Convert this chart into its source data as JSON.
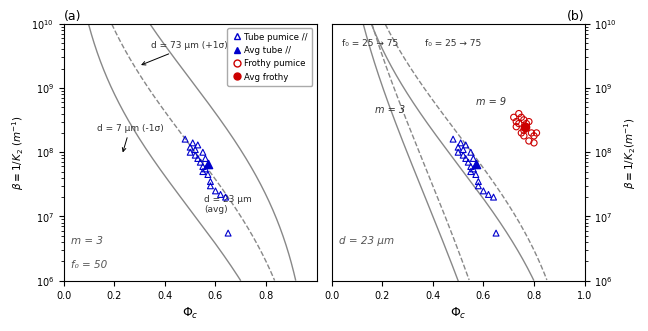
{
  "panel_a_label": "(a)",
  "panel_b_label": "(b)",
  "curves_a": [
    {
      "d_um": 7,
      "m": 3,
      "f0": 50,
      "style": "solid",
      "color": "#888888"
    },
    {
      "d_um": 23,
      "m": 3,
      "f0": 50,
      "style": "dashed",
      "color": "#888888"
    },
    {
      "d_um": 73,
      "m": 3,
      "f0": 50,
      "style": "solid",
      "color": "#888888"
    }
  ],
  "curves_b": [
    {
      "d_um": 23,
      "m": 3,
      "f0": 25,
      "style": "solid",
      "color": "#888888"
    },
    {
      "d_um": 23,
      "m": 3,
      "f0": 75,
      "style": "dashed",
      "color": "#888888"
    },
    {
      "d_um": 23,
      "m": 9,
      "f0": 25,
      "style": "solid",
      "color": "#888888"
    },
    {
      "d_um": 23,
      "m": 9,
      "f0": 75,
      "style": "dashed",
      "color": "#888888"
    }
  ],
  "tube_pumice_phi": [
    0.48,
    0.5,
    0.5,
    0.51,
    0.52,
    0.52,
    0.53,
    0.53,
    0.54,
    0.55,
    0.55,
    0.55,
    0.56,
    0.56,
    0.57,
    0.58,
    0.58,
    0.6,
    0.62,
    0.64,
    0.65
  ],
  "tube_pumice_beta": [
    160000000.0,
    120000000.0,
    100000000.0,
    140000000.0,
    110000000.0,
    90000000.0,
    130000000.0,
    80000000.0,
    70000000.0,
    100000000.0,
    60000000.0,
    50000000.0,
    80000000.0,
    55000000.0,
    45000000.0,
    35000000.0,
    30000000.0,
    25000000.0,
    22000000.0,
    20000000.0,
    5500000.0
  ],
  "avg_tube_phi": [
    0.57
  ],
  "avg_tube_beta": [
    65000000.0
  ],
  "frothy_phi": [
    0.72,
    0.73,
    0.73,
    0.74,
    0.74,
    0.75,
    0.75,
    0.76,
    0.76,
    0.76,
    0.77,
    0.77,
    0.78,
    0.78,
    0.79,
    0.8,
    0.8,
    0.81
  ],
  "frothy_beta": [
    350000000.0,
    250000000.0,
    300000000.0,
    400000000.0,
    280000000.0,
    350000000.0,
    200000000.0,
    320000000.0,
    220000000.0,
    180000000.0,
    280000000.0,
    250000000.0,
    300000000.0,
    150000000.0,
    200000000.0,
    180000000.0,
    140000000.0,
    200000000.0
  ],
  "avg_frothy_phi": [
    0.765
  ],
  "avg_frothy_beta": [
    250000000.0
  ],
  "tube_color": "#0000CC",
  "frothy_color": "#CC0000",
  "curve_color": "#777777",
  "xlim": [
    0,
    1
  ],
  "ylim_lo": 1000000.0,
  "ylim_hi": 10000000000.0,
  "ylabel_left": "$\\beta \\equiv 1/K_2 \\; (m^{-1})$",
  "ylabel_right": "$\\beta \\equiv 1/K_2 (m^{-1})$",
  "xlabel": "$\\Phi_c$",
  "legend_labels": [
    "Tube pumice //",
    "Avg tube //",
    "Frothy pumice",
    "Avg frothy"
  ],
  "ann_a_d73_text": "d = 73 μm (+1σ)",
  "ann_a_d7_text": "d = 7 μm (-1σ)",
  "ann_a_d23_text": "d = 23 μm\n(avg)",
  "ann_a_m_text": "m = 3",
  "ann_a_f0_text": "f₀ = 50",
  "ann_b_f0_left": "f₀ = 25 → 75",
  "ann_b_f0_right": "f₀ = 25 → 75",
  "ann_b_m3_text": "m = 3",
  "ann_b_m9_text": "m = 9",
  "ann_b_d_text": "d = 23 μm"
}
